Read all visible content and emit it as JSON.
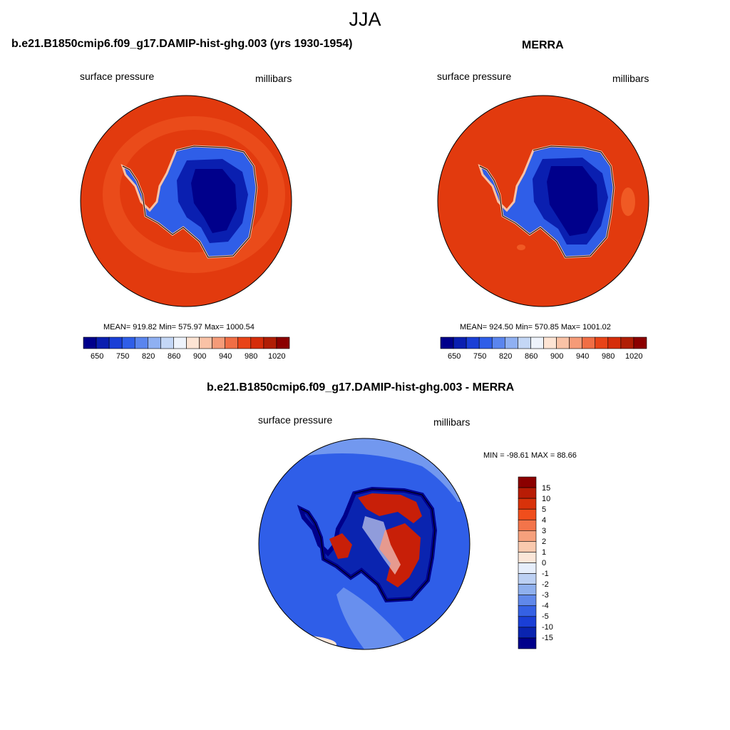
{
  "page_title": "JJA",
  "panels": [
    {
      "title": "b.e21.B1850cmip6.f09_g17.DAMIP-hist-ghg.003 (yrs 1930-1954)",
      "variable": "surface pressure",
      "units": "millibars",
      "stats": "MEAN= 919.82  Min= 575.97  Max= 1000.54"
    },
    {
      "title": "MERRA",
      "variable": "surface pressure",
      "units": "millibars",
      "stats": "MEAN= 924.50  Min= 570.85  Max= 1001.02"
    },
    {
      "title": "b.e21.B1850cmip6.f09_g17.DAMIP-hist-ghg.003 - MERRA",
      "variable": "surface pressure",
      "units": "millibars",
      "stats": "MIN = -98.61 MAX =  88.66"
    }
  ],
  "colorbar_abs": {
    "tick_labels": [
      "650",
      "750",
      "820",
      "860",
      "900",
      "940",
      "980",
      "1020"
    ],
    "colors": [
      "#00008b",
      "#0a1fb0",
      "#1a3fd6",
      "#2f5ee8",
      "#5a85ee",
      "#8fb0f2",
      "#c4d7f6",
      "#eef3fb",
      "#fde4d4",
      "#f9c2a6",
      "#f59b78",
      "#f06e45",
      "#e84418",
      "#d52d0a",
      "#b01e05",
      "#8b0000"
    ]
  },
  "colorbar_diff": {
    "labels": [
      "15",
      "10",
      "5",
      "4",
      "3",
      "2",
      "1",
      "0",
      "-1",
      "-2",
      "-3",
      "-4",
      "-5",
      "-10",
      "-15"
    ],
    "colors": [
      "#8b0000",
      "#b81c05",
      "#d8320a",
      "#f04e1c",
      "#f3744a",
      "#f6a07c",
      "#f9c9ae",
      "#fbe6d8",
      "#e6eefb",
      "#bcd0f3",
      "#8fb0ee",
      "#6088ea",
      "#3561e4",
      "#1a3fd6",
      "#0a24b0",
      "#00008b"
    ]
  },
  "map_colors": {
    "ocean_abs": "#e23a0e",
    "ocean_abs_light": "#f05a24",
    "land_mid": "#2f5ee8",
    "land_deep": "#0a1fb0",
    "land_core": "#00008b",
    "coast": "#f9c2a6",
    "diff_ocean": "#2f5ee8",
    "diff_ocean_light": "#8fb0f2",
    "diff_pos": "#c81f08",
    "diff_neg": "#0a24b0"
  }
}
